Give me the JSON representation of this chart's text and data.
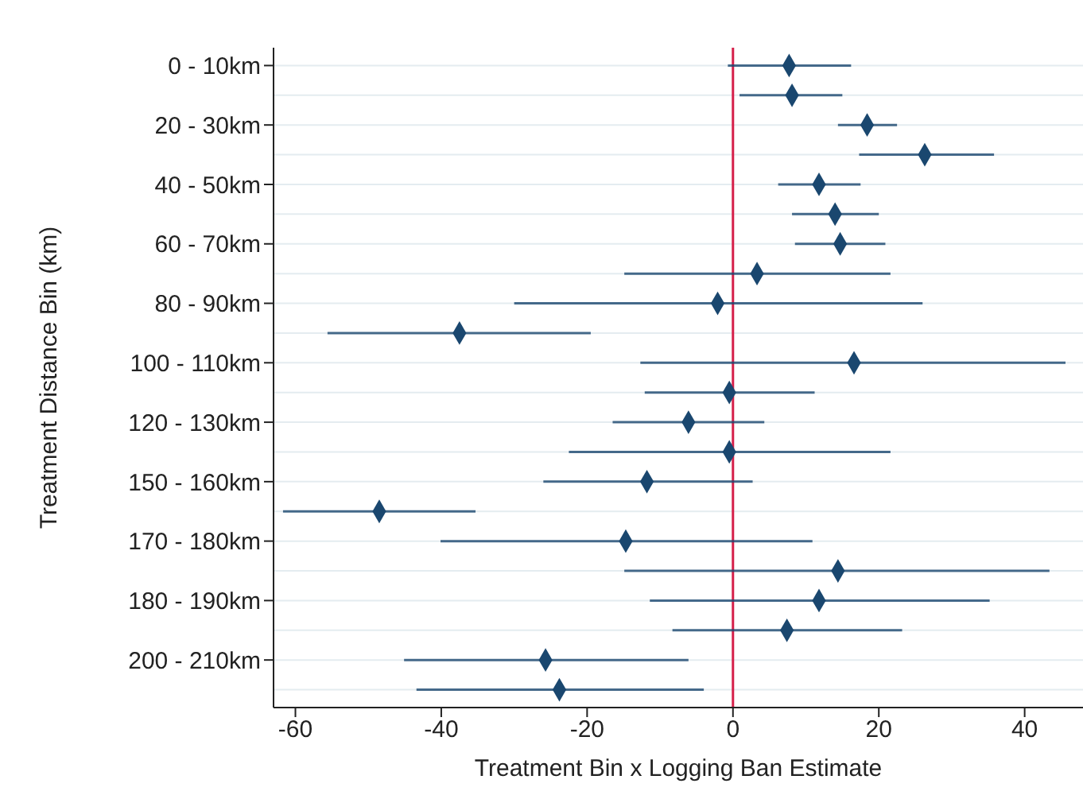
{
  "chart_data": {
    "type": "scatter",
    "orientation": "horizontal",
    "xlabel": "Treatment Bin x Logging Ban Estimate",
    "ylabel": "Treatment Distance Bin (km)",
    "categories": [
      "0 - 10km",
      null,
      "20 - 30km",
      null,
      "40 - 50km",
      null,
      "60 - 70km",
      null,
      "80 - 90km",
      null,
      "100 - 110km",
      null,
      "120 - 130km",
      null,
      "150 - 160km",
      null,
      "170 - 180km",
      null,
      "180 - 190km",
      null,
      "200 - 210km",
      null
    ],
    "color": "#1a476f",
    "values": [
      7.7,
      8.1,
      18.4,
      26.3,
      11.8,
      14.0,
      14.7,
      3.3,
      -2.1,
      -37.5,
      16.6,
      -0.5,
      -6.1,
      -0.5,
      -11.8,
      -48.5,
      -14.7,
      14.4,
      11.8,
      7.4,
      -25.7,
      -23.8
    ],
    "errors": [
      [
        -0.7,
        16.2
      ],
      [
        0.9,
        15.0
      ],
      [
        14.4,
        22.5
      ],
      [
        17.3,
        35.8
      ],
      [
        6.2,
        17.5
      ],
      [
        8.1,
        20.0
      ],
      [
        8.5,
        20.9
      ],
      [
        -14.9,
        21.6
      ],
      [
        -30.0,
        26.0
      ],
      [
        -55.6,
        -19.5
      ],
      [
        -12.7,
        45.6
      ],
      [
        -12.1,
        11.2
      ],
      [
        -16.5,
        4.3
      ],
      [
        -22.5,
        21.6
      ],
      [
        -26.0,
        2.7
      ],
      [
        -61.7,
        -35.3
      ],
      [
        -40.1,
        10.9
      ],
      [
        -14.9,
        43.4
      ],
      [
        -11.4,
        35.2
      ],
      [
        -8.3,
        23.2
      ],
      [
        -45.1,
        -6.1
      ],
      [
        -43.4,
        -4.0
      ]
    ],
    "xlim": [
      -63,
      48
    ],
    "xticks": [
      -60,
      -40,
      -20,
      0,
      20,
      40
    ],
    "grid": "y",
    "marker": "diamond",
    "legend": false,
    "ref_lines": [
      {
        "axis": "x",
        "value": 0,
        "color": "#d6204a"
      }
    ]
  }
}
